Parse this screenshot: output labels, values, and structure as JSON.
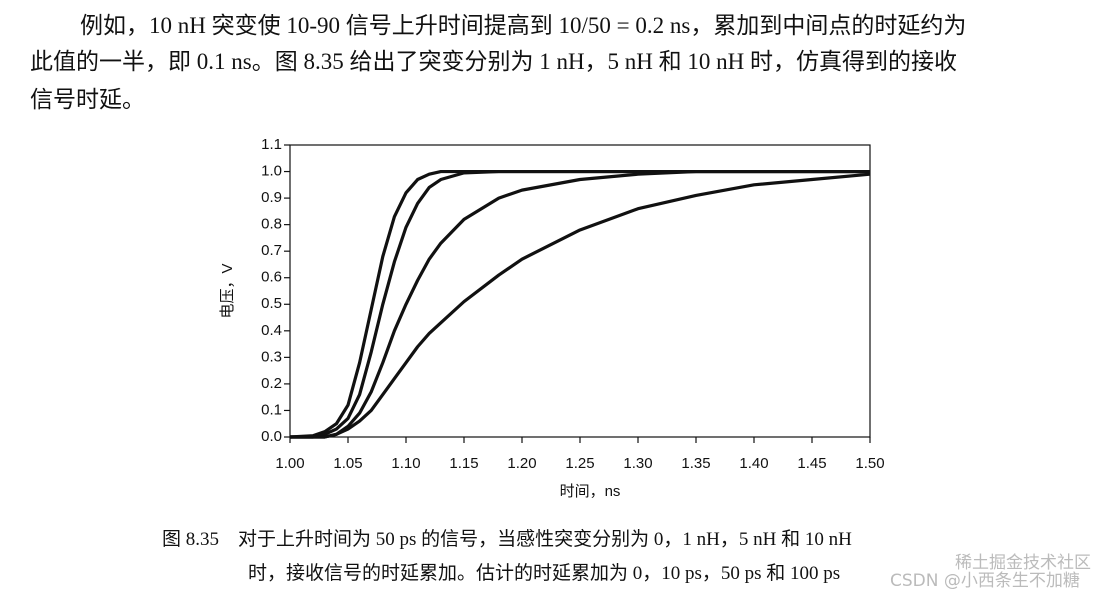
{
  "paragraph": {
    "lines": [
      "例如，10 nH 突变使 10-90 信号上升时间提高到 10/50 = 0.2 ns，累加到中间点的时延约为",
      "此值的一半，即 0.1 ns。图 8.35 给出了突变分别为 1 nH，5 nH 和 10 nH 时，仿真得到的接收",
      "信号时延。"
    ]
  },
  "chart_data": {
    "type": "line",
    "x_label": "时间，ns",
    "y_label": "电压，V",
    "x": [
      1.0,
      1.02,
      1.03,
      1.04,
      1.05,
      1.06,
      1.07,
      1.08,
      1.09,
      1.1,
      1.11,
      1.12,
      1.13,
      1.15,
      1.18,
      1.2,
      1.25,
      1.3,
      1.35,
      1.4,
      1.45,
      1.5
    ],
    "series": [
      {
        "color": "#111111",
        "values": [
          0,
          0.005,
          0.02,
          0.05,
          0.12,
          0.28,
          0.48,
          0.68,
          0.83,
          0.92,
          0.97,
          0.99,
          1.0,
          1.0,
          1.0,
          1.0,
          1.0,
          1.0,
          1.0,
          1.0,
          1.0,
          1.0
        ]
      },
      {
        "color": "#111111",
        "values": [
          0,
          0,
          0.01,
          0.03,
          0.07,
          0.16,
          0.32,
          0.5,
          0.66,
          0.79,
          0.88,
          0.94,
          0.97,
          0.995,
          1.0,
          1.0,
          1.0,
          1.0,
          1.0,
          1.0,
          1.0,
          1.0
        ]
      },
      {
        "color": "#111111",
        "values": [
          0,
          0,
          0,
          0.01,
          0.04,
          0.09,
          0.17,
          0.28,
          0.4,
          0.5,
          0.59,
          0.67,
          0.73,
          0.82,
          0.9,
          0.93,
          0.97,
          0.99,
          1.0,
          1.0,
          1.0,
          1.0
        ]
      },
      {
        "color": "#111111",
        "values": [
          0,
          0,
          0,
          0.01,
          0.03,
          0.06,
          0.1,
          0.16,
          0.22,
          0.28,
          0.34,
          0.39,
          0.43,
          0.51,
          0.61,
          0.67,
          0.78,
          0.86,
          0.91,
          0.95,
          0.97,
          0.99
        ]
      }
    ],
    "xlim": [
      1.0,
      1.5
    ],
    "xticks": [
      {
        "value": 1.0,
        "label": "1.00"
      },
      {
        "value": 1.05,
        "label": "1.05"
      },
      {
        "value": 1.1,
        "label": "1.10"
      },
      {
        "value": 1.15,
        "label": "1.15"
      },
      {
        "value": 1.2,
        "label": "1.20"
      },
      {
        "value": 1.25,
        "label": "1.25"
      },
      {
        "value": 1.3,
        "label": "1.30"
      },
      {
        "value": 1.35,
        "label": "1.35"
      },
      {
        "value": 1.4,
        "label": "1.40"
      },
      {
        "value": 1.45,
        "label": "1.45"
      },
      {
        "value": 1.5,
        "label": "1.50"
      }
    ],
    "ylim": [
      0,
      1.1
    ],
    "yticks": [
      {
        "value": 0,
        "label": "0.0"
      },
      0.1,
      0.2,
      0.3,
      0.4,
      0.5,
      0.6,
      0.7,
      0.8,
      0.9,
      {
        "value": 1,
        "label": "1.0"
      },
      1.1
    ],
    "grid": false
  },
  "caption": {
    "lines": [
      "图 8.35　对于上升时间为 50 ps 的信号，当感性突变分别为 0，1 nH，5 nH 和 10 nH",
      "时，接收信号的时延累加。估计的时延累加为 0，10 ps，50 ps 和 100 ps"
    ]
  },
  "watermark": {
    "lines": [
      "稀土掘金技术社区",
      "CSDN @小西条生不加糖"
    ]
  }
}
